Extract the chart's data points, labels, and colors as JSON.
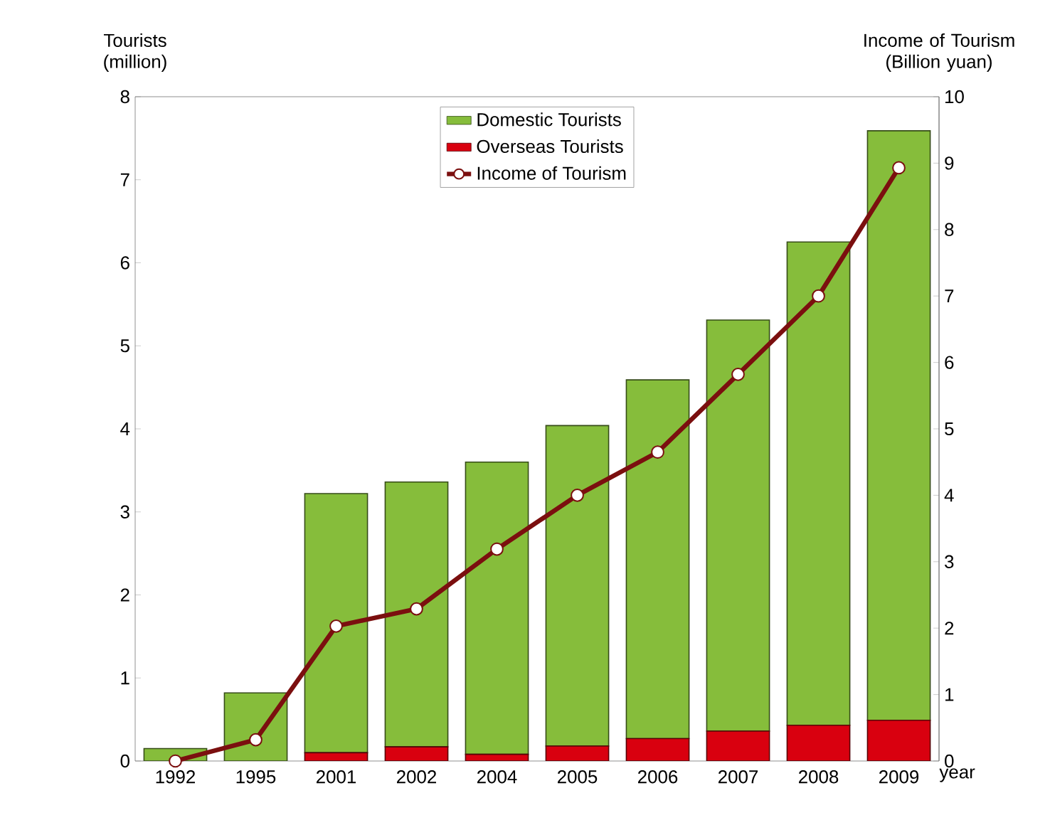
{
  "chart_data": {
    "type": "bar",
    "stacked": true,
    "xlabel": "year",
    "ylabel": "Tourists (million)",
    "y2label": "Income of Tourism (Billion yuan)",
    "categories": [
      "1992",
      "1995",
      "2001",
      "2002",
      "2004",
      "2005",
      "2006",
      "2007",
      "2008",
      "2009"
    ],
    "series": [
      {
        "name": "Overseas Tourists",
        "color": "#d9000f",
        "values": [
          0,
          0,
          0.1,
          0.17,
          0.08,
          0.18,
          0.27,
          0.36,
          0.43,
          0.49
        ]
      },
      {
        "name": "Domestic Tourists",
        "color": "#86bd3b",
        "values": [
          0.15,
          0.82,
          3.12,
          3.19,
          3.52,
          3.86,
          4.32,
          4.95,
          5.82,
          7.1
        ]
      },
      {
        "name": "Income of Tourism",
        "type": "line",
        "axis": "y2",
        "color": "#7b0f0f",
        "marker": "circle",
        "line_style": "solid",
        "values": [
          0.0,
          0.32,
          2.03,
          2.29,
          3.19,
          4.0,
          4.65,
          5.82,
          7.0,
          8.93
        ]
      }
    ],
    "ylim": [
      0,
      8
    ],
    "yticks": [
      0,
      1,
      2,
      3,
      4,
      5,
      6,
      7,
      8
    ],
    "y2lim": [
      0,
      10
    ],
    "y2ticks": [
      0,
      1,
      2,
      3,
      4,
      5,
      6,
      7,
      8,
      9,
      10
    ],
    "legend": "top",
    "grid": false
  }
}
